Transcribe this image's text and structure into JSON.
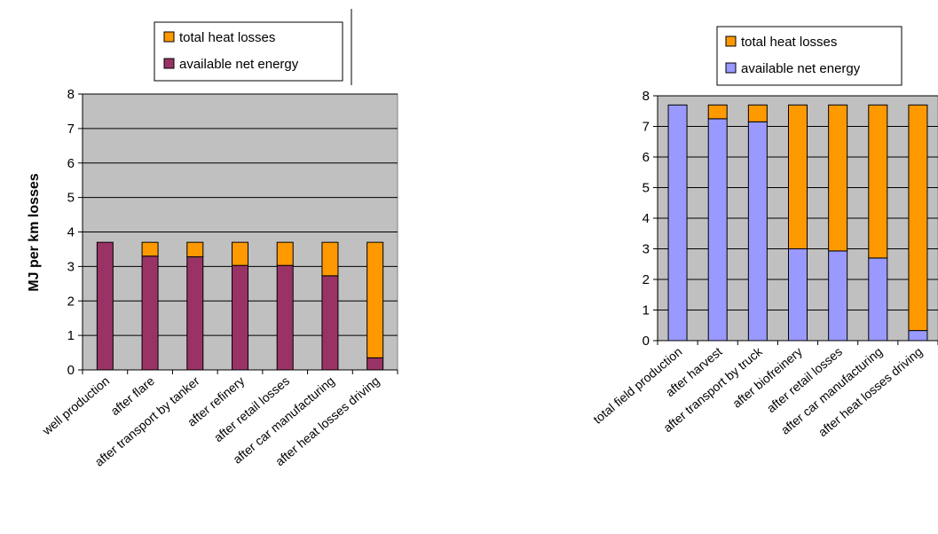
{
  "chart_data": [
    {
      "type": "bar",
      "stacked": true,
      "categories": [
        "well production",
        "after flare",
        "after transport by tanker",
        "after refinery",
        "after retail losses",
        "after car manufacturing",
        "after heat losses driving"
      ],
      "series": [
        {
          "name": "available net energy",
          "values": [
            3.7,
            3.3,
            3.28,
            3.03,
            3.03,
            2.73,
            0.35
          ]
        },
        {
          "name": "total heat losses",
          "values": [
            0,
            0.4,
            0.42,
            0.67,
            0.67,
            0.97,
            3.35
          ]
        }
      ],
      "legend_order": [
        "total heat losses",
        "available net energy"
      ],
      "ylabel": "MJ per km losses",
      "ylim": [
        0,
        8
      ],
      "yticks": [
        "0",
        "1",
        "2",
        "3",
        "4",
        "5",
        "6",
        "7",
        "8"
      ],
      "grid": true,
      "legend_position": "top",
      "colors": {
        "available net energy": "#993366",
        "total heat losses": "#FF9900",
        "plot_bg": "#C0C0C0"
      }
    },
    {
      "type": "bar",
      "stacked": true,
      "categories": [
        "total field production",
        "after harvest",
        "after transport by truck",
        "after biofreinery",
        "after retail losses",
        "after car manufacturing",
        "after heat losses driving"
      ],
      "series": [
        {
          "name": "available net energy",
          "values": [
            7.7,
            7.25,
            7.15,
            3.0,
            2.93,
            2.7,
            0.33
          ]
        },
        {
          "name": "total heat losses",
          "values": [
            0,
            0.45,
            0.55,
            4.7,
            4.77,
            5.0,
            7.37
          ]
        }
      ],
      "legend_order": [
        "total heat losses",
        "available net energy"
      ],
      "ylabel": "",
      "ylim": [
        0,
        8
      ],
      "yticks": [
        "0",
        "1",
        "2",
        "3",
        "4",
        "5",
        "6",
        "7",
        "8"
      ],
      "grid": true,
      "legend_position": "top",
      "colors": {
        "available net energy": "#9999FF",
        "total heat losses": "#FF9900",
        "plot_bg": "#C0C0C0"
      }
    }
  ]
}
